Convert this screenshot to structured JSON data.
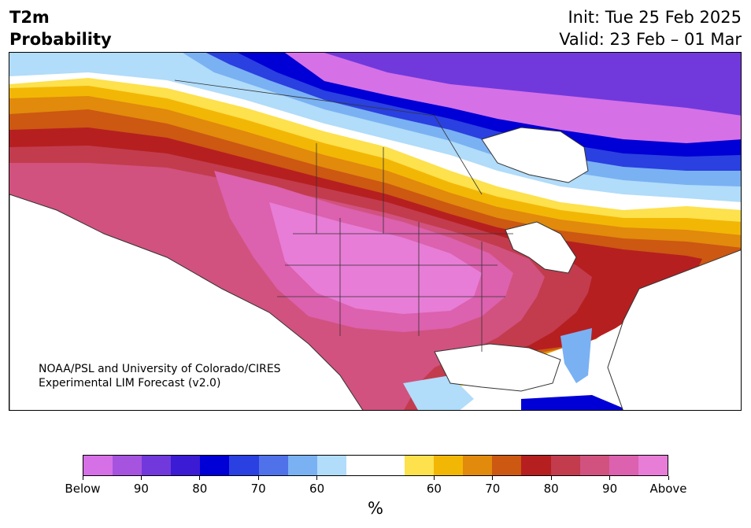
{
  "header": {
    "title_line1": "T2m",
    "title_line2": "Probability",
    "init": "Init: Tue 25 Feb 2025",
    "valid": "Valid: 23 Feb – 01 Mar"
  },
  "map": {
    "credit_line1": "NOAA/PSL and University of Colorado/CIRES",
    "credit_line2": "Experimental LIM Forecast (v2.0)",
    "palette": {
      "below": [
        "#d670e6",
        "#a654df",
        "#7139dc",
        "#3b1bd4",
        "#0000d6",
        "#2a40e0",
        "#4f72ea",
        "#7ab1f3",
        "#b1dcfa"
      ],
      "near": "#ffffff",
      "above": [
        "#fde14d",
        "#f2b705",
        "#e18a0c",
        "#cc5812",
        "#b61f20",
        "#c23c4e",
        "#d1527f",
        "#dc61ae",
        "#e77dd6"
      ]
    }
  },
  "colorbar": {
    "labels": [
      "Below",
      "90",
      "80",
      "70",
      "60",
      "60",
      "70",
      "80",
      "90",
      "Above"
    ],
    "unit": "%"
  }
}
